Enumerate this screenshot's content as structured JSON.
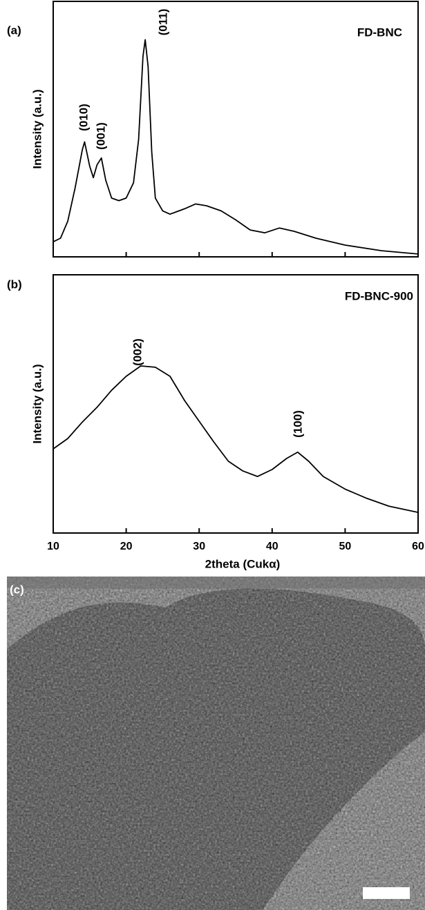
{
  "chart_data": [
    {
      "type": "line",
      "panel": "(a)",
      "ylabel": "Intensity (a.u.)",
      "annotations": [
        "(010)",
        "(001)",
        "(011)",
        "FD-BNC"
      ],
      "x": [
        10,
        11,
        12,
        13,
        14,
        14.3,
        15,
        15.5,
        16,
        16.6,
        17.2,
        18,
        19,
        20,
        21,
        21.7,
        22.3,
        22.6,
        23,
        23.5,
        24,
        25,
        26,
        28,
        29.5,
        31,
        33,
        35,
        37,
        39,
        41,
        43,
        46,
        50,
        55,
        60
      ],
      "values": [
        5.9,
        7.3,
        14,
        27,
        42,
        45,
        35.5,
        31,
        36,
        38.7,
        30,
        23,
        22,
        23,
        29,
        46,
        78.5,
        85,
        74.5,
        41,
        23,
        18,
        16.7,
        18.8,
        20.7,
        20,
        18,
        14.5,
        10.5,
        9.4,
        11.3,
        10,
        7.3,
        4.6,
        2.4,
        1.1
      ],
      "color": "#000000",
      "xlim": [
        10,
        60
      ],
      "ylim": [
        0,
        100
      ],
      "xticks": [
        10,
        20,
        30,
        40,
        50,
        60
      ],
      "xtick_labels": false
    },
    {
      "type": "line",
      "panel": "(b)",
      "ylabel": "Intensity (a.u.)",
      "xlabel": "2theta (Cukα)",
      "annotations": [
        "(002)",
        "(100)",
        "FD-BNC-900"
      ],
      "x": [
        10,
        12,
        14,
        16,
        18,
        20,
        22,
        24,
        26,
        28,
        30,
        32,
        34,
        36,
        38,
        40,
        42,
        43.5,
        45,
        47,
        50,
        53,
        56,
        60
      ],
      "values": [
        32.6,
        36.6,
        43,
        48.7,
        55.3,
        60.7,
        64.7,
        64.2,
        60.7,
        51.3,
        43.3,
        35.3,
        27.8,
        24,
        21.9,
        24.6,
        28.9,
        31.3,
        27.8,
        21.9,
        17,
        13.4,
        10.4,
        8
      ],
      "color": "#000000",
      "xlim": [
        10,
        60
      ],
      "ylim": [
        0,
        100
      ],
      "xticks": [
        10,
        20,
        30,
        40,
        50,
        60
      ],
      "xtick_labels": true
    }
  ],
  "image": {
    "panel": "(c)"
  }
}
